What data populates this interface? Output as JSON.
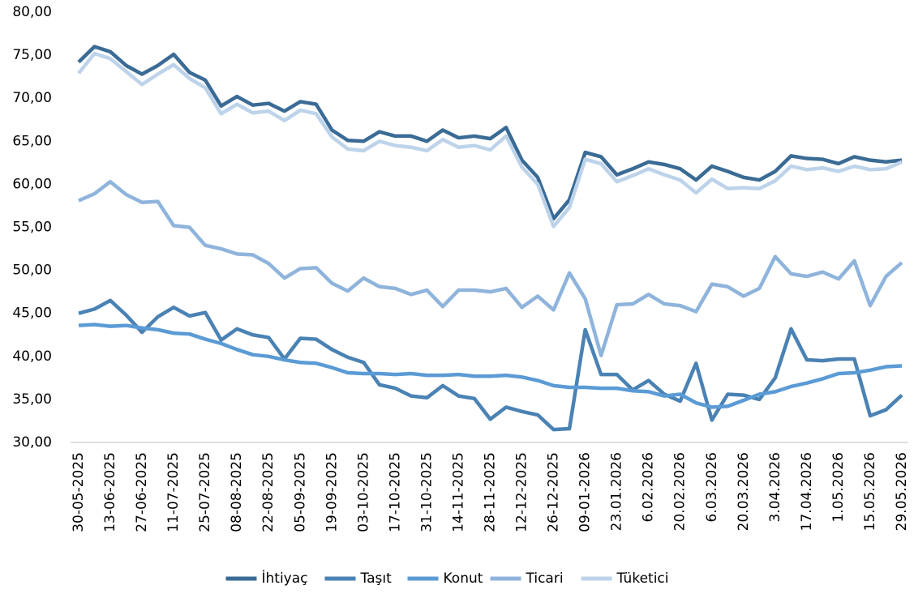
{
  "chart_data": {
    "type": "line",
    "categories": [
      "30-05-2025",
      null,
      "13-06-2025",
      null,
      "27-06-2025",
      null,
      "11-07-2025",
      null,
      "25-07-2025",
      null,
      "08-08-2025",
      null,
      "22-08-2025",
      null,
      "05-09-2025",
      null,
      "19-09-2025",
      null,
      "03-10-2025",
      null,
      "17-10-2025",
      null,
      "31-10-2025",
      null,
      "14-11-2025",
      null,
      "28-11-2025",
      null,
      "12-12-2025",
      null,
      "26-12-2025",
      null,
      "09-01-2026",
      null,
      "23.01.2026",
      null,
      "6.02.2026",
      null,
      "20.02.2026",
      null,
      "6.03.2026",
      null,
      "20.03.2026",
      null,
      "3.04.2026",
      null,
      "17.04.2026",
      null,
      "1.05.2026",
      null,
      "15.05.2026",
      null,
      "29.05.2026"
    ],
    "series": [
      {
        "name": "İhtiyaç",
        "color": "#3a6b95",
        "values": [
          74.2,
          76.0,
          75.4,
          73.8,
          72.8,
          73.8,
          75.1,
          73.0,
          72.1,
          69.1,
          70.2,
          69.2,
          69.4,
          68.5,
          69.6,
          69.3,
          66.3,
          65.1,
          65.0,
          66.1,
          65.6,
          65.6,
          65.0,
          66.3,
          65.4,
          65.6,
          65.3,
          66.6,
          62.8,
          60.8,
          56.0,
          58.2,
          63.7,
          63.2,
          61.1,
          61.8,
          62.6,
          62.3,
          61.8,
          60.5,
          62.1,
          61.5,
          60.8,
          60.5,
          61.5,
          63.3,
          63.0,
          62.9,
          62.4,
          63.2,
          62.8,
          62.6,
          62.8
        ]
      },
      {
        "name": "Taşıt",
        "color": "#4a82b4",
        "values": [
          45.0,
          45.5,
          46.5,
          44.8,
          42.8,
          44.6,
          45.7,
          44.7,
          45.1,
          41.9,
          43.2,
          42.5,
          42.2,
          39.7,
          42.1,
          42.0,
          40.8,
          39.9,
          39.3,
          36.7,
          36.3,
          35.4,
          35.2,
          36.6,
          35.4,
          35.1,
          32.7,
          34.1,
          33.6,
          33.2,
          31.5,
          31.6,
          43.1,
          37.9,
          37.9,
          36.1,
          37.2,
          35.6,
          34.8,
          39.2,
          32.6,
          35.6,
          35.5,
          35.0,
          37.5,
          43.2,
          39.6,
          39.5,
          39.7,
          39.7,
          33.1,
          33.8,
          35.5
        ]
      },
      {
        "name": "Konut",
        "color": "#5b9bd5",
        "values": [
          43.6,
          43.7,
          43.5,
          43.6,
          43.3,
          43.1,
          42.7,
          42.6,
          42.0,
          41.5,
          40.8,
          40.2,
          40.0,
          39.6,
          39.3,
          39.2,
          38.7,
          38.1,
          38.0,
          38.0,
          37.9,
          38.0,
          37.8,
          37.8,
          37.9,
          37.7,
          37.7,
          37.8,
          37.6,
          37.2,
          36.6,
          36.4,
          36.4,
          36.3,
          36.3,
          36.0,
          35.9,
          35.4,
          35.6,
          34.6,
          34.1,
          34.2,
          34.9,
          35.6,
          35.9,
          36.5,
          36.9,
          37.4,
          38.0,
          38.1,
          38.4,
          38.8,
          38.9
        ]
      },
      {
        "name": "Ticari",
        "color": "#8fb4dc",
        "values": [
          58.1,
          58.9,
          60.3,
          58.8,
          57.9,
          58.0,
          55.2,
          55.0,
          52.9,
          52.5,
          51.9,
          51.8,
          50.8,
          49.1,
          50.2,
          50.3,
          48.5,
          47.6,
          49.1,
          48.1,
          47.9,
          47.2,
          47.7,
          45.8,
          47.7,
          47.7,
          47.5,
          47.9,
          45.7,
          47.0,
          45.4,
          49.7,
          46.7,
          40.1,
          46.0,
          46.1,
          47.2,
          46.1,
          45.9,
          45.2,
          48.4,
          48.1,
          47.0,
          47.9,
          51.6,
          49.6,
          49.3,
          49.8,
          49.0,
          51.1,
          45.9,
          49.3,
          50.9
        ]
      },
      {
        "name": "Tüketici",
        "color": "#bdd3ea",
        "values": [
          72.9,
          75.2,
          74.6,
          73.1,
          71.6,
          72.8,
          73.9,
          72.3,
          71.2,
          68.2,
          69.3,
          68.3,
          68.5,
          67.4,
          68.6,
          68.2,
          65.5,
          64.1,
          63.9,
          65.0,
          64.5,
          64.3,
          63.9,
          65.2,
          64.3,
          64.5,
          64.0,
          65.6,
          62.0,
          60.0,
          55.1,
          57.3,
          62.9,
          62.4,
          60.3,
          61.0,
          61.8,
          61.1,
          60.5,
          59.0,
          60.6,
          59.5,
          59.6,
          59.5,
          60.4,
          62.1,
          61.7,
          61.9,
          61.5,
          62.1,
          61.7,
          61.8,
          62.6
        ]
      }
    ],
    "ylim": [
      30,
      80
    ],
    "yticks": [
      {
        "value": 30,
        "label": "30,00"
      },
      {
        "value": 35,
        "label": "35,00"
      },
      {
        "value": 40,
        "label": "40,00"
      },
      {
        "value": 45,
        "label": "45,00"
      },
      {
        "value": 50,
        "label": "50,00"
      },
      {
        "value": 55,
        "label": "55,00"
      },
      {
        "value": 60,
        "label": "60,00"
      },
      {
        "value": 65,
        "label": "65,00"
      },
      {
        "value": 70,
        "label": "70,00"
      },
      {
        "value": 75,
        "label": "75,00"
      },
      {
        "value": 80,
        "label": "80,00"
      }
    ],
    "grid": false,
    "legend": "bottom"
  }
}
